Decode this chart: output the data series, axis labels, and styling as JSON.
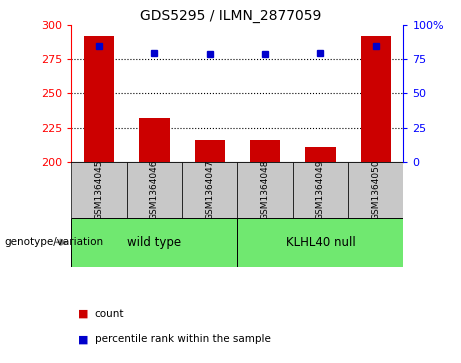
{
  "title": "GDS5295 / ILMN_2877059",
  "samples": [
    "GSM1364045",
    "GSM1364046",
    "GSM1364047",
    "GSM1364048",
    "GSM1364049",
    "GSM1364050"
  ],
  "bar_values": [
    292,
    232,
    216,
    216,
    211,
    292
  ],
  "dot_values": [
    85,
    80,
    79,
    79,
    80,
    85
  ],
  "ymin": 200,
  "ymax": 300,
  "yticks_left": [
    200,
    225,
    250,
    275,
    300
  ],
  "yticks_right": [
    0,
    25,
    50,
    75,
    100
  ],
  "bar_color": "#cc0000",
  "dot_color": "#0000cc",
  "grid_lines": [
    225,
    250,
    275
  ],
  "wt_label": "wild type",
  "kl_label": "KLHL40 null",
  "genotype_label": "genotype/variation",
  "legend_count_label": "count",
  "legend_percentile_label": "percentile rank within the sample",
  "sample_box_color": "#c8c8c8",
  "wt_color": "#70e870",
  "kl_color": "#70e870",
  "plot_bg": "#ffffff"
}
